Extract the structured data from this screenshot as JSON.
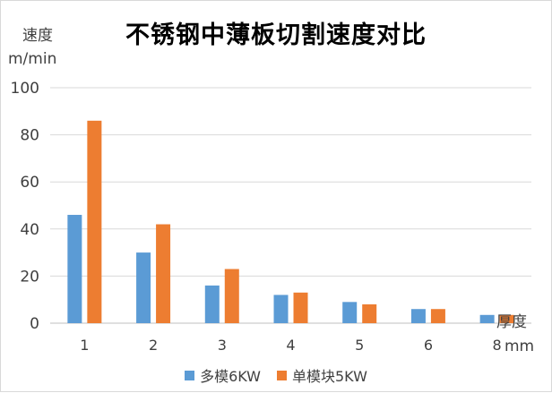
{
  "chart_data": {
    "type": "bar",
    "title": "不锈钢中薄板切割速度对比",
    "ylabel": "速度",
    "yunit": "m/min",
    "xlabel": "厚度",
    "xunit": "mm",
    "categories": [
      "1",
      "2",
      "3",
      "4",
      "5",
      "6",
      "8"
    ],
    "ylim": [
      0,
      100
    ],
    "yticks": [
      0,
      20,
      40,
      60,
      80,
      100
    ],
    "grid": true,
    "legend_position": "bottom",
    "series": [
      {
        "name": "多模6KW",
        "color": "#5b9bd5",
        "values": [
          46,
          30,
          16,
          12,
          9,
          6,
          3.5
        ]
      },
      {
        "name": "单模块5KW",
        "color": "#ed7d31",
        "values": [
          86,
          42,
          23,
          13,
          8,
          6,
          3.5
        ]
      }
    ]
  }
}
